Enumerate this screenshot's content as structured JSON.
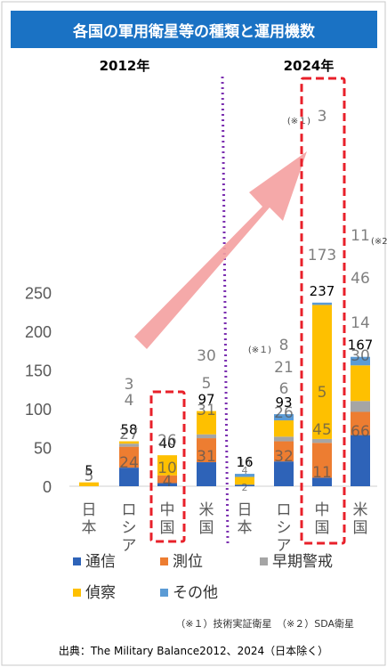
{
  "title": "各国の軍用衛星等の種類と運用機数",
  "source": "出典：The Military Balance2012、2024（日本除く）",
  "footnote": "（※１）技術実証衛星　（※２）SDA衛星",
  "colors": {
    "comm": "#2e63b8",
    "survey": "#ed7d31",
    "early": "#a5a5a5",
    "recon": "#fec000",
    "other": "#5b9bd5",
    "highlight": "#e8202a",
    "arrow": "#f4a0a0",
    "divider": "#7b2fb0",
    "title_bg": "#1a72c4"
  },
  "chart_data": {
    "type": "bar",
    "stacked": true,
    "groups": [
      {
        "label": "2012年",
        "categories": [
          "日本",
          "ロシア",
          "中国",
          "米国"
        ]
      },
      {
        "label": "2024年",
        "categories": [
          "日本",
          "ロシア",
          "中国",
          "米国"
        ]
      }
    ],
    "categories": [
      "日本",
      "ロシア",
      "中国",
      "米国",
      "日本",
      "ロシア",
      "中国",
      "米国"
    ],
    "series": [
      {
        "name": "通信",
        "color_key": "comm",
        "values": [
          0,
          24,
          4,
          31,
          2,
          32,
          11,
          66
        ]
      },
      {
        "name": "測位",
        "color_key": "survey",
        "values": [
          0,
          27,
          10,
          31,
          0,
          26,
          45,
          30
        ]
      },
      {
        "name": "早期警戒",
        "color_key": "early",
        "values": [
          0,
          4,
          0,
          5,
          0,
          6,
          5,
          14
        ]
      },
      {
        "name": "偵察",
        "color_key": "recon",
        "values": [
          5,
          3,
          26,
          30,
          10,
          21,
          173,
          46
        ]
      },
      {
        "name": "その他",
        "color_key": "other",
        "values": [
          0,
          0,
          0,
          0,
          4,
          8,
          3,
          11
        ]
      }
    ],
    "totals": [
      5,
      58,
      40,
      97,
      16,
      93,
      237,
      167
    ],
    "segment_labels": [
      [
        null,
        null,
        null,
        "5",
        null
      ],
      [
        "24",
        "27",
        "4",
        "3",
        null
      ],
      [
        "4",
        "10",
        null,
        "26",
        null
      ],
      [
        "31",
        "31",
        "5",
        "30",
        null
      ],
      [
        "2",
        null,
        null,
        "10",
        "4"
      ],
      [
        "32",
        "26",
        "6",
        "21",
        "8"
      ],
      [
        "11",
        "45",
        "5",
        "173",
        "3"
      ],
      [
        "66",
        "30",
        "14",
        "46",
        "11"
      ]
    ],
    "annotations": [
      {
        "text": "(※１)",
        "bar": 5
      },
      {
        "text": "(※１)",
        "bar": 6
      },
      {
        "text": "(※2",
        "bar": 7
      }
    ],
    "ylim": [
      0,
      270
    ],
    "yticks": [
      0,
      50,
      100,
      150,
      200,
      250
    ],
    "highlighted": [
      2,
      6
    ],
    "grid": false,
    "legend_position": "bottom"
  }
}
